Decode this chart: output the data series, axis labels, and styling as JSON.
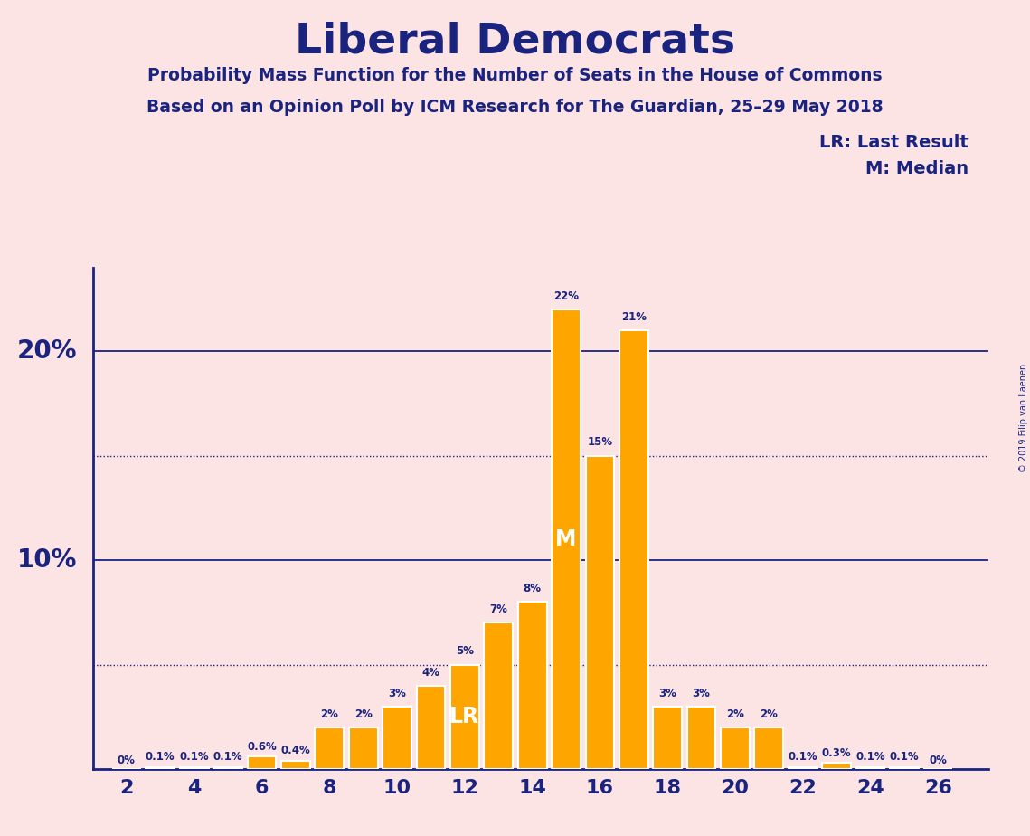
{
  "title": "Liberal Democrats",
  "subtitle1": "Probability Mass Function for the Number of Seats in the House of Commons",
  "subtitle2": "Based on an Opinion Poll by ICM Research for The Guardian, 25–29 May 2018",
  "copyright": "© 2019 Filip van Laenen",
  "legend_lr": "LR: Last Result",
  "legend_m": "M: Median",
  "background_color": "#fce4e4",
  "bar_color": "#FFA500",
  "text_color": "#1a237e",
  "seats": [
    2,
    3,
    4,
    5,
    6,
    7,
    8,
    9,
    10,
    11,
    12,
    13,
    14,
    15,
    16,
    17,
    18,
    19,
    20,
    21,
    22,
    23,
    24,
    25,
    26
  ],
  "probabilities": [
    0.0,
    0.1,
    0.1,
    0.1,
    0.6,
    0.4,
    2.0,
    2.0,
    3.0,
    4.0,
    5.0,
    7.0,
    8.0,
    22.0,
    15.0,
    21.0,
    3.0,
    3.0,
    2.0,
    2.0,
    0.1,
    0.3,
    0.1,
    0.1,
    0.0
  ],
  "labels": [
    "0%",
    "0.1%",
    "0.1%",
    "0.1%",
    "0.6%",
    "0.4%",
    "2%",
    "2%",
    "3%",
    "4%",
    "5%",
    "7%",
    "8%",
    "22%",
    "15%",
    "21%",
    "3%",
    "3%",
    "2%",
    "2%",
    "0.1%",
    "0.3%",
    "0.1%",
    "0.1%",
    "0%"
  ],
  "lr_seat": 12,
  "median_seat": 15,
  "hlines_solid": [
    10.0,
    20.0
  ],
  "hlines_dotted": [
    5.0,
    15.0
  ],
  "ylim": [
    0,
    24
  ],
  "xlim": [
    1.0,
    27.5
  ]
}
